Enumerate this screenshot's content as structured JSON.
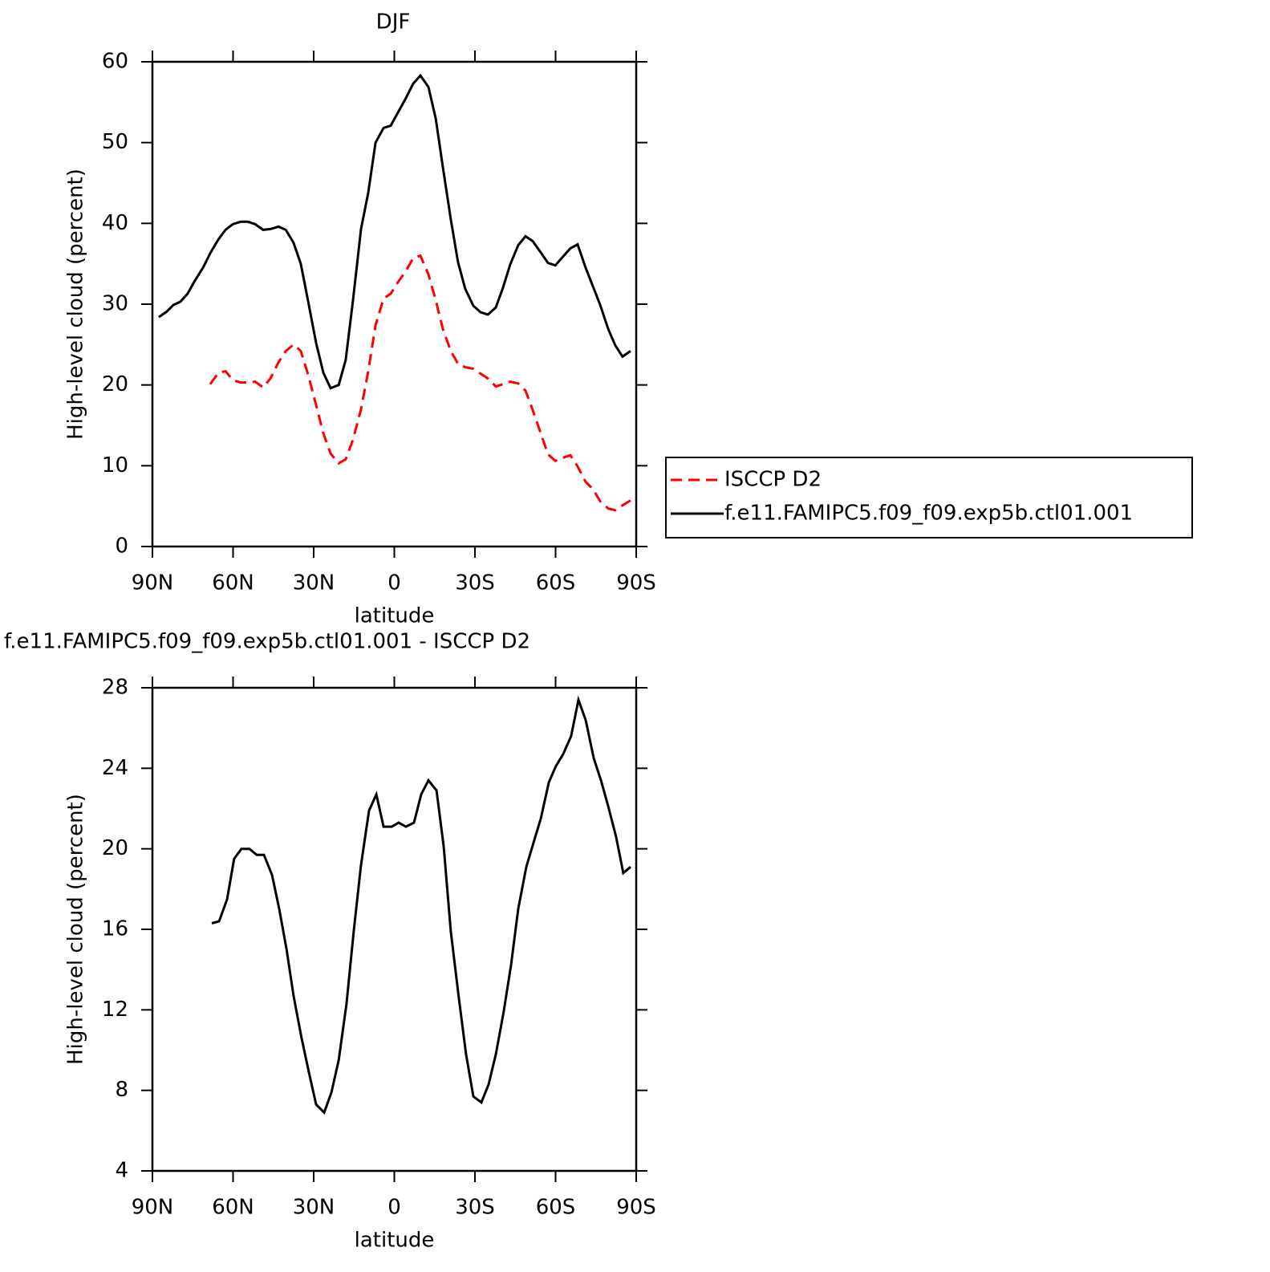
{
  "chart_data": [
    {
      "type": "line",
      "title": "DJF",
      "x_label": "latitude",
      "y_label": "High-level cloud (percent)",
      "x": [
        87.6,
        84.6,
        82.2,
        79.6,
        76.9,
        74.2,
        71.2,
        68.5,
        65.5,
        62.8,
        60.1,
        57.2,
        54.5,
        51.8,
        48.8,
        46.1,
        43.1,
        40.4,
        37.5,
        34.8,
        32.1,
        29.1,
        26.4,
        23.7,
        20.7,
        18.1,
        15.4,
        12.4,
        9.7,
        7.0,
        4.0,
        1.3,
        -1.3,
        -4.3,
        -7.0,
        -9.7,
        -12.7,
        -15.4,
        -18.1,
        -21.0,
        -23.7,
        -26.4,
        -29.4,
        -32.1,
        -34.8,
        -37.8,
        -40.4,
        -43.1,
        -46.1,
        -48.8,
        -51.5,
        -54.5,
        -57.2,
        -59.9,
        -62.8,
        -65.5,
        -68.2,
        -71.2,
        -73.9,
        -76.6,
        -79.6,
        -82.2,
        -84.9,
        -87.9
      ],
      "xlim": [
        90,
        -90
      ],
      "xticks": [
        {
          "value": 90,
          "label": "90N"
        },
        {
          "value": 60,
          "label": "60N"
        },
        {
          "value": 30,
          "label": "30N"
        },
        0,
        {
          "value": -30,
          "label": "30S"
        },
        {
          "value": -60,
          "label": "60S"
        },
        {
          "value": -90,
          "label": "90S"
        }
      ],
      "ylim": [
        0,
        60
      ],
      "yticks": [
        0,
        10,
        20,
        30,
        40,
        50,
        60
      ],
      "legend": "right",
      "series": [
        {
          "name": "ISCCP D2",
          "color": "#ff0000",
          "line_style": "dashed",
          "values": [
            null,
            null,
            null,
            null,
            null,
            null,
            null,
            20.1,
            21.5,
            21.7,
            20.6,
            20.3,
            20.3,
            20.4,
            19.7,
            20.8,
            22.8,
            24.2,
            25.0,
            24.2,
            21.3,
            17.5,
            14.0,
            11.5,
            10.3,
            10.8,
            13.2,
            17.0,
            21.7,
            27.4,
            30.7,
            31.3,
            32.7,
            34.1,
            35.7,
            36.0,
            33.7,
            30.5,
            26.9,
            24.2,
            22.6,
            22.2,
            22.0,
            21.4,
            20.8,
            19.8,
            20.1,
            20.4,
            20.2,
            19.3,
            16.9,
            14.0,
            11.4,
            10.6,
            11.0,
            11.3,
            9.9,
            8.0,
            7.1,
            5.6,
            4.7,
            4.5,
            5.1,
            5.7
          ]
        },
        {
          "name": "f.e11.FAMIPC5.f09_f09.exp5b.ctl01.001",
          "color": "#000000",
          "line_style": "solid",
          "values": [
            28.4,
            29.1,
            29.9,
            30.3,
            31.3,
            32.9,
            34.5,
            36.3,
            38.0,
            39.2,
            39.9,
            40.2,
            40.2,
            39.9,
            39.2,
            39.3,
            39.6,
            39.2,
            37.6,
            35.0,
            30.4,
            25.2,
            21.5,
            19.6,
            20.0,
            23.1,
            30.4,
            39.3,
            43.8,
            50.0,
            51.8,
            52.1,
            53.7,
            55.5,
            57.3,
            58.3,
            56.9,
            53.0,
            46.9,
            40.5,
            35.2,
            31.9,
            29.8,
            29.0,
            28.7,
            29.6,
            32.0,
            34.9,
            37.3,
            38.4,
            37.8,
            36.4,
            35.1,
            34.8,
            35.9,
            36.9,
            37.4,
            34.5,
            32.2,
            29.9,
            26.9,
            24.9,
            23.5,
            24.2
          ]
        }
      ]
    },
    {
      "type": "line",
      "title": "f.e11.FAMIPC5.f09_f09.exp5b.ctl01.001 - ISCCP D2",
      "x_label": "latitude",
      "y_label": "High-level cloud (percent)",
      "x": [
        67.9,
        65.2,
        62.2,
        59.6,
        56.9,
        53.9,
        51.2,
        48.5,
        45.5,
        42.8,
        40.1,
        37.5,
        34.5,
        31.8,
        29.1,
        26.1,
        23.4,
        20.7,
        17.8,
        15.1,
        12.4,
        9.4,
        6.7,
        4.0,
        1.0,
        -1.6,
        -4.3,
        -7.3,
        -10.0,
        -12.7,
        -15.7,
        -18.4,
        -21.0,
        -24.0,
        -26.7,
        -29.4,
        -32.4,
        -35.1,
        -37.8,
        -40.7,
        -43.4,
        -46.1,
        -49.1,
        -51.8,
        -54.5,
        -57.5,
        -60.1,
        -62.8,
        -65.8,
        -68.5,
        -71.2,
        -74.2,
        -76.9,
        -79.6,
        -82.5,
        -85.2,
        -87.9
      ],
      "xlim": [
        90,
        -90
      ],
      "xticks": [
        {
          "value": 90,
          "label": "90N"
        },
        {
          "value": 60,
          "label": "60N"
        },
        {
          "value": 30,
          "label": "30N"
        },
        0,
        {
          "value": -30,
          "label": "30S"
        },
        {
          "value": -60,
          "label": "60S"
        },
        {
          "value": -90,
          "label": "90S"
        }
      ],
      "ylim": [
        4,
        28
      ],
      "yticks": [
        4,
        8,
        12,
        16,
        20,
        24,
        28
      ],
      "color": "#000000",
      "values": [
        16.3,
        16.4,
        17.5,
        19.5,
        20.0,
        20.0,
        19.7,
        19.7,
        18.7,
        17.0,
        15.0,
        12.7,
        10.6,
        8.9,
        7.3,
        6.9,
        7.9,
        9.5,
        12.3,
        15.9,
        19.2,
        21.9,
        22.7,
        21.1,
        21.1,
        21.3,
        21.1,
        21.3,
        22.7,
        23.4,
        22.9,
        20.1,
        15.9,
        12.6,
        9.8,
        7.7,
        7.4,
        8.3,
        9.8,
        11.9,
        14.2,
        17.0,
        19.1,
        20.3,
        21.5,
        23.3,
        24.1,
        24.7,
        25.6,
        27.4,
        26.4,
        24.5,
        23.4,
        22.1,
        20.6,
        18.8,
        19.1
      ]
    }
  ]
}
